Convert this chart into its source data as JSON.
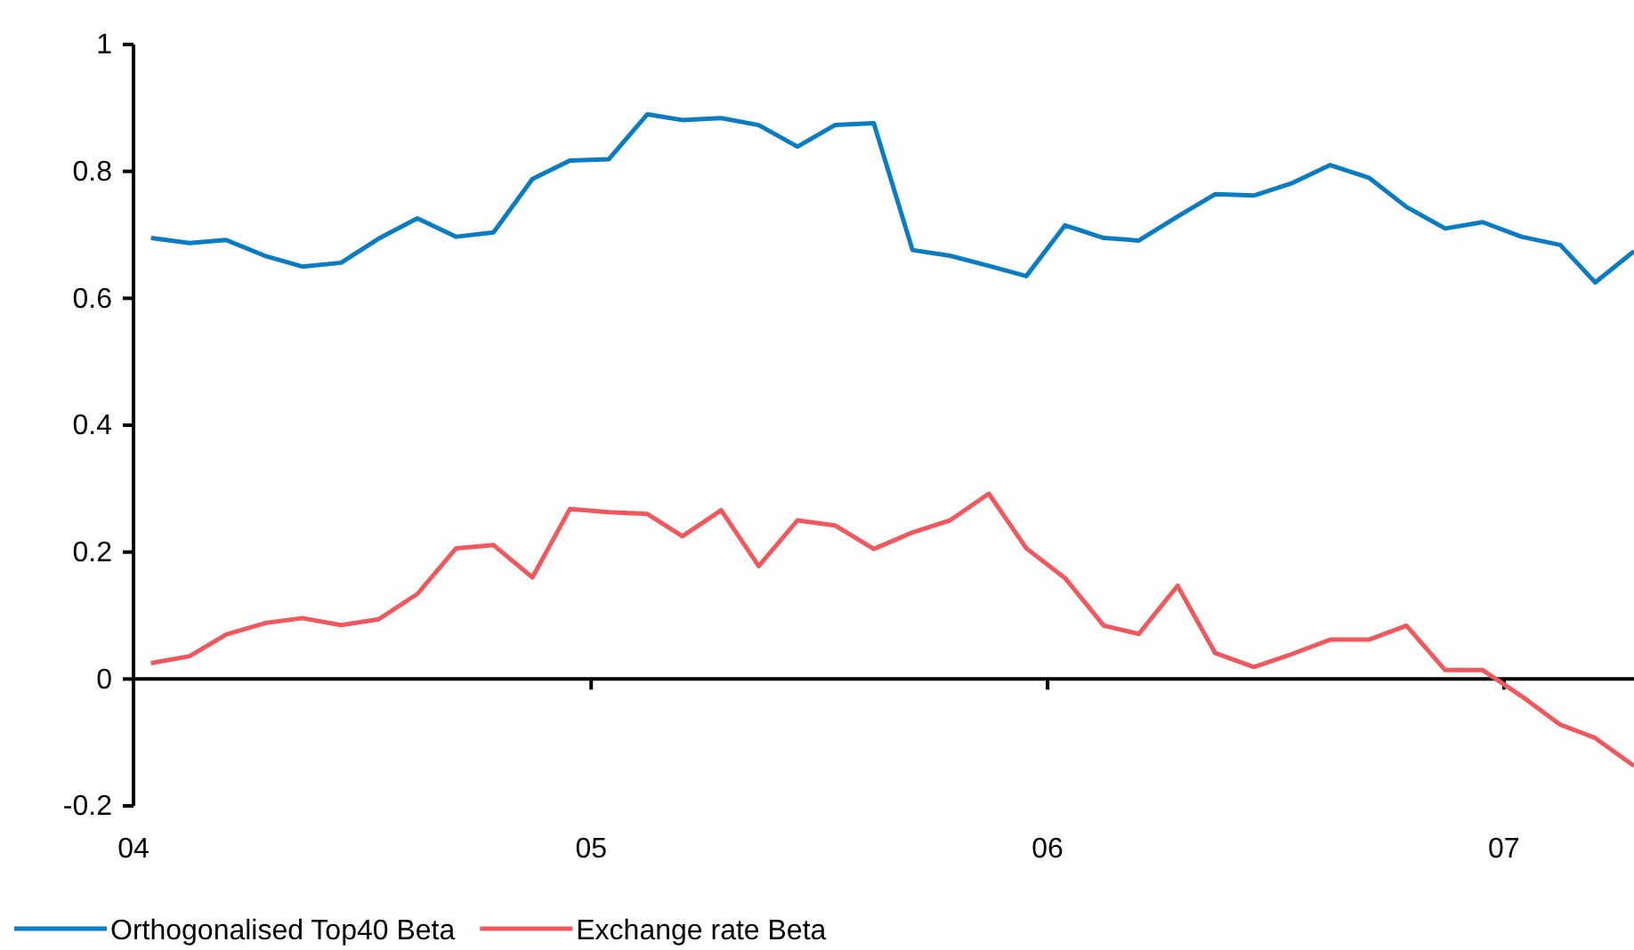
{
  "chart_data": {
    "type": "line",
    "x": [
      "2004-01-15",
      "2004-02-15",
      "2004-03-15",
      "2004-04-15",
      "2004-05-15",
      "2004-06-15",
      "2004-07-15",
      "2004-08-15",
      "2004-09-15",
      "2004-10-15",
      "2004-11-15",
      "2004-12-15",
      "2005-01-15",
      "2005-02-15",
      "2005-03-15",
      "2005-04-15",
      "2005-05-15",
      "2005-06-15",
      "2005-07-15",
      "2005-08-15",
      "2005-09-15",
      "2005-10-15",
      "2005-11-15",
      "2005-12-15",
      "2006-01-15",
      "2006-02-15",
      "2006-03-15",
      "2006-04-15",
      "2006-05-15",
      "2006-06-15",
      "2006-07-15",
      "2006-08-15",
      "2006-09-15",
      "2006-10-15",
      "2006-11-15",
      "2006-12-15",
      "2007-01-15",
      "2007-02-15",
      "2007-03-15",
      "2007-04-15"
    ],
    "series": [
      {
        "name": "Orthogonalised Top40 Beta",
        "color": "#0a7dc2",
        "values": [
          0.695,
          0.687,
          0.692,
          0.667,
          0.65,
          0.656,
          0.694,
          0.726,
          0.697,
          0.704,
          0.788,
          0.817,
          0.819,
          0.89,
          0.881,
          0.884,
          0.873,
          0.839,
          0.873,
          0.876,
          0.676,
          0.667,
          0.651,
          0.635,
          0.715,
          0.695,
          0.691,
          0.729,
          0.764,
          0.762,
          0.781,
          0.81,
          0.79,
          0.744,
          0.71,
          0.72,
          0.697,
          0.684,
          0.625,
          0.674
        ]
      },
      {
        "name": "Exchange rate Beta",
        "color": "#f0585e",
        "values": [
          0.025,
          0.036,
          0.07,
          0.088,
          0.096,
          0.085,
          0.094,
          0.134,
          0.206,
          0.211,
          0.16,
          0.268,
          0.263,
          0.26,
          0.225,
          0.266,
          0.178,
          0.25,
          0.242,
          0.205,
          0.231,
          0.25,
          0.292,
          0.206,
          0.159,
          0.084,
          0.071,
          0.147,
          0.041,
          0.019,
          0.039,
          0.062,
          0.062,
          0.084,
          0.014,
          0.014,
          -0.027,
          -0.072,
          -0.093,
          -0.137
        ]
      }
    ],
    "xlim": [
      "2004-01-01",
      "2007-04-15"
    ],
    "xticks": [
      {
        "value": "2004-01-01",
        "label": "04"
      },
      {
        "value": "2005-01-01",
        "label": "05"
      },
      {
        "value": "2006-01-01",
        "label": "06"
      },
      {
        "value": "2007-01-01",
        "label": "07"
      }
    ],
    "ylim": [
      -0.2,
      1
    ],
    "yticks": [
      {
        "value": -0.2,
        "label": "-0.2"
      },
      {
        "value": 0,
        "label": "0"
      },
      {
        "value": 0.2,
        "label": "0.2"
      },
      {
        "value": 0.4,
        "label": "0.4"
      },
      {
        "value": 0.6,
        "label": "0.6"
      },
      {
        "value": 0.8,
        "label": "0.8"
      },
      {
        "value": 1,
        "label": "1"
      }
    ],
    "legend": "bottom left",
    "marker": "none",
    "line_style": "solid"
  }
}
